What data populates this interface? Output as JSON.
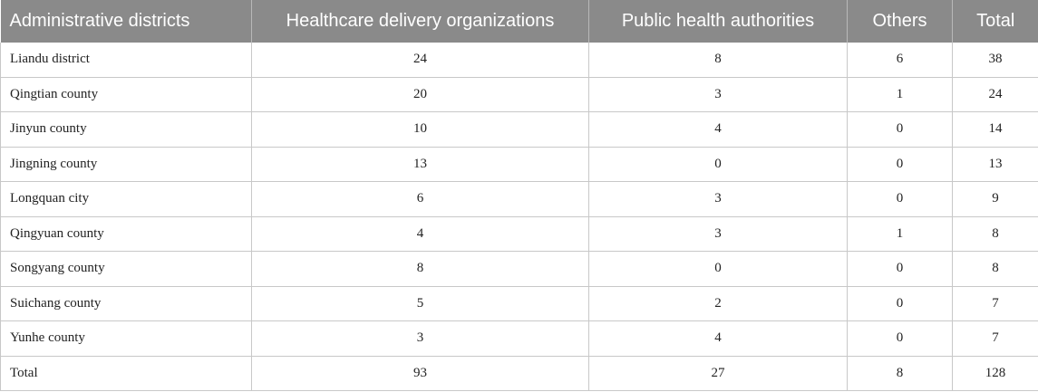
{
  "table": {
    "headers": [
      "Administrative districts",
      "Healthcare delivery organizations",
      "Public health authorities",
      "Others",
      "Total"
    ],
    "rows": [
      [
        "Liandu district",
        "24",
        "8",
        "6",
        "38"
      ],
      [
        "Qingtian county",
        "20",
        "3",
        "1",
        "24"
      ],
      [
        "Jinyun county",
        "10",
        "4",
        "0",
        "14"
      ],
      [
        "Jingning county",
        "13",
        "0",
        "0",
        "13"
      ],
      [
        "Longquan city",
        "6",
        "3",
        "0",
        "9"
      ],
      [
        "Qingyuan county",
        "4",
        "3",
        "1",
        "8"
      ],
      [
        "Songyang county",
        "8",
        "0",
        "0",
        "8"
      ],
      [
        "Suichang county",
        "5",
        "2",
        "0",
        "7"
      ],
      [
        "Yunhe county",
        "3",
        "4",
        "0",
        "7"
      ],
      [
        "Total",
        "93",
        "27",
        "8",
        "128"
      ]
    ]
  },
  "colors": {
    "header_background": "#8a8a8a",
    "header_text": "#ffffff",
    "grid_line": "#c8c8c8"
  }
}
